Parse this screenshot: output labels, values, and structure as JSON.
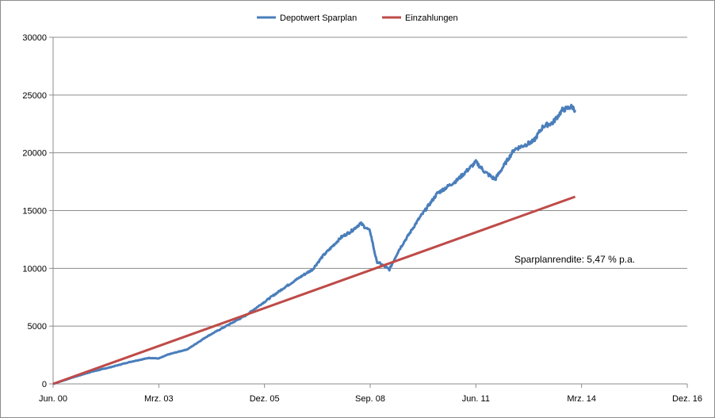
{
  "chart_data": {
    "type": "line",
    "title": "",
    "xlabel": "",
    "ylabel": "",
    "xlim": [
      "2000-06",
      "2016-12"
    ],
    "ylim": [
      0,
      30000
    ],
    "grid": "horizontal",
    "legend_position": "top",
    "x_ticks": [
      "Jun. 00",
      "Mrz. 03",
      "Dez. 05",
      "Sep. 08",
      "Jun. 11",
      "Mrz. 14",
      "Dez. 16"
    ],
    "y_ticks": [
      "0",
      "5000",
      "10000",
      "15000",
      "20000",
      "25000",
      "30000"
    ],
    "annotation": "Sparplanrendite: 5,47 % p.a.",
    "series": [
      {
        "name": "Depotwert Sparplan",
        "color": "#4a7ebb",
        "points": [
          [
            "2000-06",
            0
          ],
          [
            "2000-12",
            550
          ],
          [
            "2001-06",
            1050
          ],
          [
            "2001-12",
            1450
          ],
          [
            "2002-06",
            1900
          ],
          [
            "2002-12",
            2250
          ],
          [
            "2003-03",
            2200
          ],
          [
            "2003-06",
            2550
          ],
          [
            "2003-12",
            3000
          ],
          [
            "2004-06",
            4100
          ],
          [
            "2004-12",
            5000
          ],
          [
            "2005-06",
            5900
          ],
          [
            "2005-12",
            7100
          ],
          [
            "2006-06",
            8300
          ],
          [
            "2006-12",
            9400
          ],
          [
            "2007-03",
            9900
          ],
          [
            "2007-06",
            11000
          ],
          [
            "2007-12",
            12700
          ],
          [
            "2008-03",
            13200
          ],
          [
            "2008-06",
            13900
          ],
          [
            "2008-09",
            13200
          ],
          [
            "2008-11",
            10600
          ],
          [
            "2009-03",
            9900
          ],
          [
            "2009-06",
            11600
          ],
          [
            "2009-12",
            14200
          ],
          [
            "2010-06",
            16500
          ],
          [
            "2010-12",
            17600
          ],
          [
            "2011-06",
            19200
          ],
          [
            "2011-09",
            18300
          ],
          [
            "2011-12",
            17700
          ],
          [
            "2012-06",
            20300
          ],
          [
            "2012-12",
            21000
          ],
          [
            "2013-03",
            22300
          ],
          [
            "2013-06",
            22600
          ],
          [
            "2013-09",
            23700
          ],
          [
            "2013-12",
            24000
          ],
          [
            "2014-01",
            23700
          ]
        ]
      },
      {
        "name": "Einzahlungen",
        "color": "#be4b48",
        "points": [
          [
            "2000-06",
            0
          ],
          [
            "2014-01",
            16200
          ]
        ]
      }
    ]
  }
}
